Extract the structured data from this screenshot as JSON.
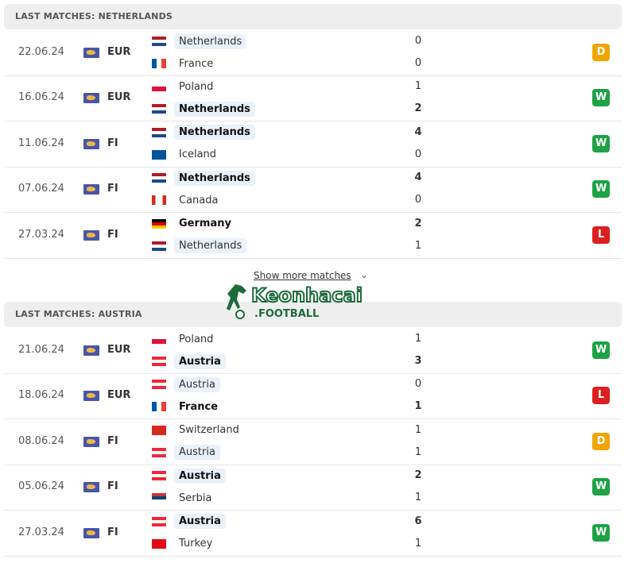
{
  "sections": [
    {
      "title": "LAST MATCHES: NETHERLANDS",
      "matches": [
        {
          "date": "22.06.24",
          "comp": "EUR",
          "home": {
            "name": "Netherlands",
            "flag": "NL",
            "hl": true,
            "bold": false,
            "score": "0"
          },
          "away": {
            "name": "France",
            "flag": "FR",
            "hl": false,
            "bold": false,
            "score": "0"
          },
          "result": "D"
        },
        {
          "date": "16.06.24",
          "comp": "EUR",
          "home": {
            "name": "Poland",
            "flag": "PL",
            "hl": false,
            "bold": false,
            "score": "1"
          },
          "away": {
            "name": "Netherlands",
            "flag": "NL",
            "hl": true,
            "bold": true,
            "score": "2"
          },
          "result": "W"
        },
        {
          "date": "11.06.24",
          "comp": "FI",
          "home": {
            "name": "Netherlands",
            "flag": "NL",
            "hl": true,
            "bold": true,
            "score": "4"
          },
          "away": {
            "name": "Iceland",
            "flag": "IS",
            "hl": false,
            "bold": false,
            "score": "0"
          },
          "result": "W"
        },
        {
          "date": "07.06.24",
          "comp": "FI",
          "home": {
            "name": "Netherlands",
            "flag": "NL",
            "hl": true,
            "bold": true,
            "score": "4"
          },
          "away": {
            "name": "Canada",
            "flag": "CA",
            "hl": false,
            "bold": false,
            "score": "0"
          },
          "result": "W"
        },
        {
          "date": "27.03.24",
          "comp": "FI",
          "home": {
            "name": "Germany",
            "flag": "DE",
            "hl": false,
            "bold": true,
            "score": "2"
          },
          "away": {
            "name": "Netherlands",
            "flag": "NL",
            "hl": true,
            "bold": false,
            "score": "1"
          },
          "result": "L"
        }
      ]
    },
    {
      "title": "LAST MATCHES: AUSTRIA",
      "matches": [
        {
          "date": "21.06.24",
          "comp": "EUR",
          "home": {
            "name": "Poland",
            "flag": "PL",
            "hl": false,
            "bold": false,
            "score": "1"
          },
          "away": {
            "name": "Austria",
            "flag": "AT",
            "hl": true,
            "bold": true,
            "score": "3"
          },
          "result": "W"
        },
        {
          "date": "18.06.24",
          "comp": "EUR",
          "home": {
            "name": "Austria",
            "flag": "AT",
            "hl": true,
            "bold": false,
            "score": "0"
          },
          "away": {
            "name": "France",
            "flag": "FR",
            "hl": false,
            "bold": true,
            "score": "1"
          },
          "result": "L"
        },
        {
          "date": "08.06.24",
          "comp": "FI",
          "home": {
            "name": "Switzerland",
            "flag": "CH",
            "hl": false,
            "bold": false,
            "score": "1"
          },
          "away": {
            "name": "Austria",
            "flag": "AT",
            "hl": true,
            "bold": false,
            "score": "1"
          },
          "result": "D"
        },
        {
          "date": "05.06.24",
          "comp": "FI",
          "home": {
            "name": "Austria",
            "flag": "AT",
            "hl": true,
            "bold": true,
            "score": "2"
          },
          "away": {
            "name": "Serbia",
            "flag": "RS",
            "hl": false,
            "bold": false,
            "score": "1"
          },
          "result": "W"
        },
        {
          "date": "27.03.24",
          "comp": "FI",
          "home": {
            "name": "Austria",
            "flag": "AT",
            "hl": true,
            "bold": true,
            "score": "6"
          },
          "away": {
            "name": "Turkey",
            "flag": "TR",
            "hl": false,
            "bold": false,
            "score": "1"
          },
          "result": "W"
        }
      ]
    }
  ],
  "show_more": "Show more matches",
  "watermark": {
    "name": "Keonhacai",
    "sub": ".FOOTBALL"
  },
  "colors": {
    "W": "#1ea245",
    "D": "#f0a500",
    "L": "#dc1f1f"
  }
}
